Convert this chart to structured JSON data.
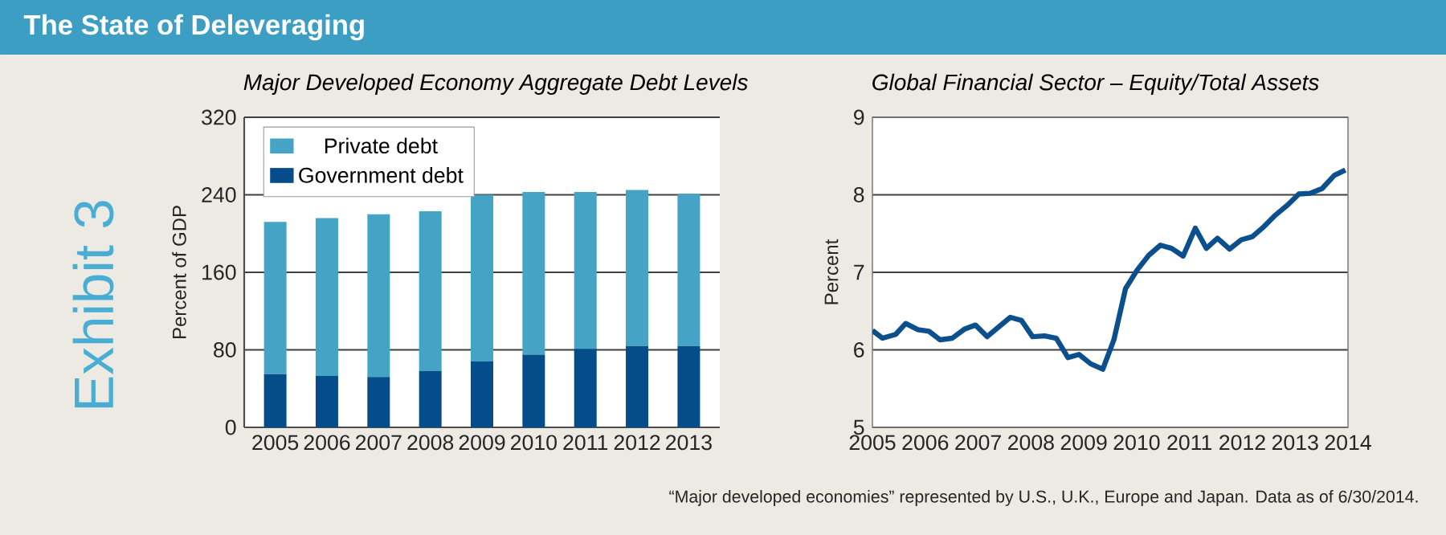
{
  "chart_data": [
    {
      "type": "bar",
      "title": "Major Developed Economy Aggregate Debt Levels",
      "ylabel": "Percent of GDP",
      "stacked": true,
      "categories": [
        "2005",
        "2006",
        "2007",
        "2008",
        "2009",
        "2010",
        "2011",
        "2012",
        "2013"
      ],
      "series": [
        {
          "name": "Government debt",
          "color": "#044c8a",
          "values": [
            55,
            53,
            52,
            58,
            68,
            75,
            81,
            84,
            84
          ]
        },
        {
          "name": "Private debt",
          "color": "#45a3c6",
          "values": [
            157,
            163,
            168,
            165,
            172,
            168,
            162,
            161,
            157
          ]
        }
      ],
      "ylim": [
        0,
        320
      ],
      "yticks": [
        0,
        80,
        160,
        240,
        320
      ],
      "grid": "y",
      "legend": "top left",
      "annotations": [
        "The State of Deleveraging",
        "Exhibit 3"
      ]
    },
    {
      "type": "line",
      "title": "Global Financial Sector – Equity/Total Assets",
      "ylabel": "Percent",
      "x": [
        2005.0,
        2005.19,
        2005.44,
        2005.63,
        2005.86,
        2006.07,
        2006.28,
        2006.51,
        2006.75,
        2006.95,
        2007.17,
        2007.38,
        2007.61,
        2007.82,
        2008.03,
        2008.26,
        2008.48,
        2008.7,
        2008.91,
        2009.13,
        2009.36,
        2009.57,
        2009.79,
        2010.01,
        2010.23,
        2010.45,
        2010.66,
        2010.88,
        2011.11,
        2011.32,
        2011.53,
        2011.76,
        2011.98,
        2012.19,
        2012.41,
        2012.63,
        2012.86,
        2013.07,
        2013.29,
        2013.51,
        2013.74,
        2013.95
      ],
      "series": [
        {
          "color": "#0b4f8c",
          "values": [
            6.25,
            6.15,
            6.2,
            6.34,
            6.26,
            6.24,
            6.13,
            6.15,
            6.27,
            6.32,
            6.17,
            6.29,
            6.42,
            6.38,
            6.17,
            6.18,
            6.15,
            5.9,
            5.94,
            5.82,
            5.75,
            6.13,
            6.79,
            7.03,
            7.22,
            7.35,
            7.31,
            7.21,
            7.57,
            7.31,
            7.44,
            7.3,
            7.42,
            7.46,
            7.59,
            7.74,
            7.87,
            8.01,
            8.02,
            8.08,
            8.25,
            8.32
          ]
        }
      ],
      "xlim": [
        2005,
        2014
      ],
      "xticks": [
        2005,
        2006,
        2007,
        2008,
        2009,
        2010,
        2011,
        2012,
        2013,
        2014
      ],
      "ylim": [
        5,
        9
      ],
      "yticks": [
        5,
        6,
        7,
        8,
        9
      ],
      "grid": "y",
      "annotations": [
        "“Major developed economies” represented by U.S., U.K., Europe and Japan. Data as of 6/30/2014."
      ]
    }
  ]
}
